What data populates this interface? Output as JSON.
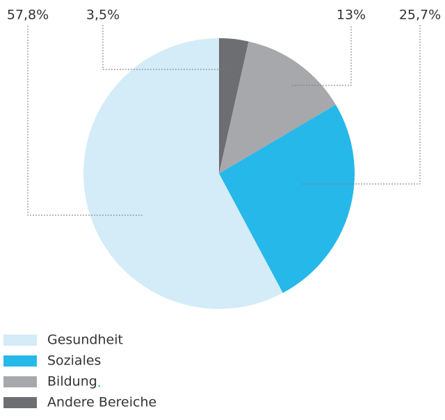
{
  "chart_data": {
    "type": "pie",
    "categories": [
      "Gesundheit",
      "Soziales",
      "Bildung",
      "Andere Bereiche"
    ],
    "values": [
      57.8,
      25.7,
      13,
      3.5
    ],
    "value_labels": [
      "57,8%",
      "25,7%",
      "13%",
      "3,5%"
    ],
    "colors": [
      "#d4ebf8",
      "#27b8ea",
      "#a7a8ab",
      "#6d6e71"
    ]
  }
}
